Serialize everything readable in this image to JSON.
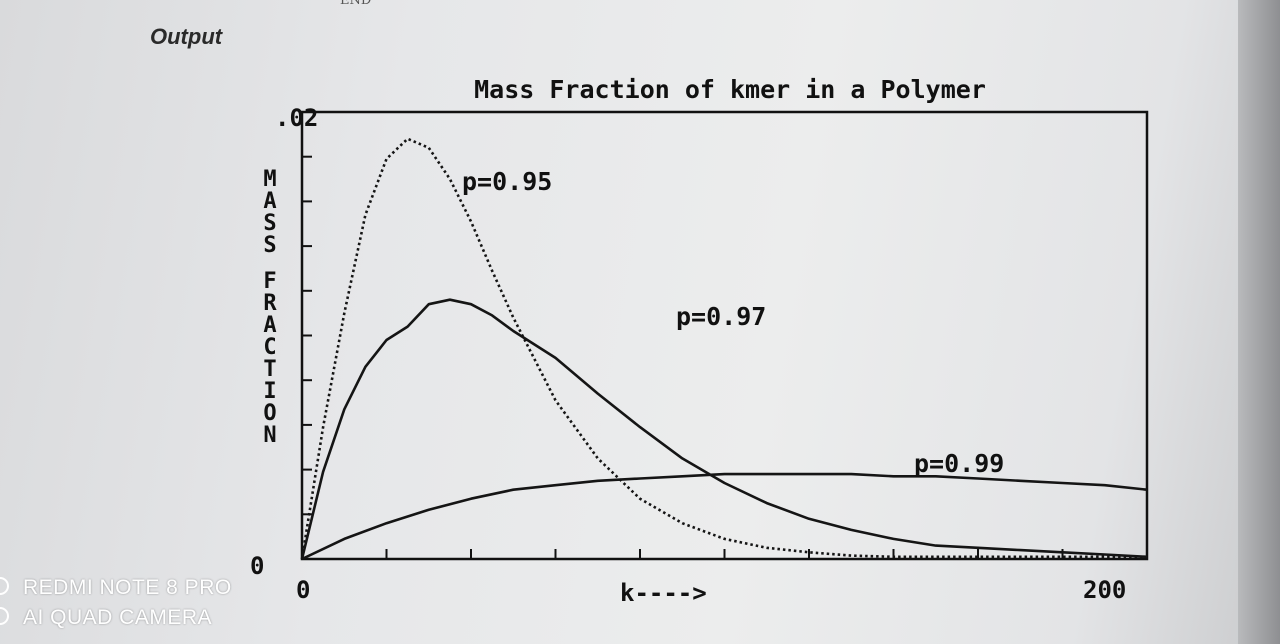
{
  "header": {
    "end_text": "END",
    "output_label": "Output"
  },
  "chart_data": {
    "type": "line",
    "title": "Mass Fraction of kmer in a Polymer",
    "xlabel": "k---->",
    "ylabel": "MASS FRACTION",
    "xlim": [
      0,
      200
    ],
    "ylim": [
      0,
      0.02
    ],
    "x_tick_labels": [
      "0",
      "200"
    ],
    "y_tick_labels": [
      "0",
      ".02"
    ],
    "grid": false,
    "series": [
      {
        "name": "p=0.95",
        "style": "dotted-rising",
        "x": [
          0,
          5,
          10,
          15,
          20,
          25,
          30,
          35,
          40,
          45,
          50,
          60,
          70,
          80,
          90,
          100,
          110,
          120,
          130,
          140,
          150,
          160,
          170,
          180,
          190,
          200
        ],
        "values": [
          0,
          0.0059,
          0.011,
          0.0154,
          0.0179,
          0.0188,
          0.0184,
          0.017,
          0.0151,
          0.0129,
          0.0108,
          0.0071,
          0.0045,
          0.0027,
          0.0016,
          0.0009,
          0.0005,
          0.0003,
          0.00015,
          0.0001,
          0.0001,
          0.0001,
          0.0001,
          0.0001,
          0.0001,
          0.0001
        ]
      },
      {
        "name": "p=0.97",
        "style": "solid",
        "x": [
          0,
          5,
          10,
          15,
          20,
          25,
          30,
          35,
          40,
          45,
          50,
          60,
          70,
          80,
          90,
          100,
          110,
          120,
          130,
          140,
          150,
          160,
          170,
          180,
          190,
          200
        ],
        "values": [
          0,
          0.0039,
          0.0067,
          0.0086,
          0.0098,
          0.0104,
          0.0114,
          0.0116,
          0.0114,
          0.0109,
          0.0102,
          0.009,
          0.0074,
          0.0059,
          0.0045,
          0.0034,
          0.0025,
          0.0018,
          0.0013,
          0.0009,
          0.0006,
          0.0005,
          0.0004,
          0.0003,
          0.0002,
          0.0001
        ]
      },
      {
        "name": "p=0.99",
        "style": "solid",
        "x": [
          0,
          10,
          20,
          30,
          40,
          50,
          60,
          70,
          80,
          90,
          100,
          110,
          120,
          130,
          140,
          150,
          160,
          170,
          180,
          190,
          200
        ],
        "values": [
          0,
          0.0009,
          0.0016,
          0.0022,
          0.0027,
          0.0031,
          0.0033,
          0.0035,
          0.0036,
          0.0037,
          0.0038,
          0.0038,
          0.0038,
          0.0038,
          0.0037,
          0.0037,
          0.0036,
          0.0035,
          0.0034,
          0.0033,
          0.0031
        ]
      }
    ],
    "annotations": [
      "p=0.95",
      "p=0.97",
      "p=0.99"
    ]
  },
  "watermark": {
    "line1": "REDMI NOTE 8 PRO",
    "line2": "AI QUAD CAMERA"
  }
}
